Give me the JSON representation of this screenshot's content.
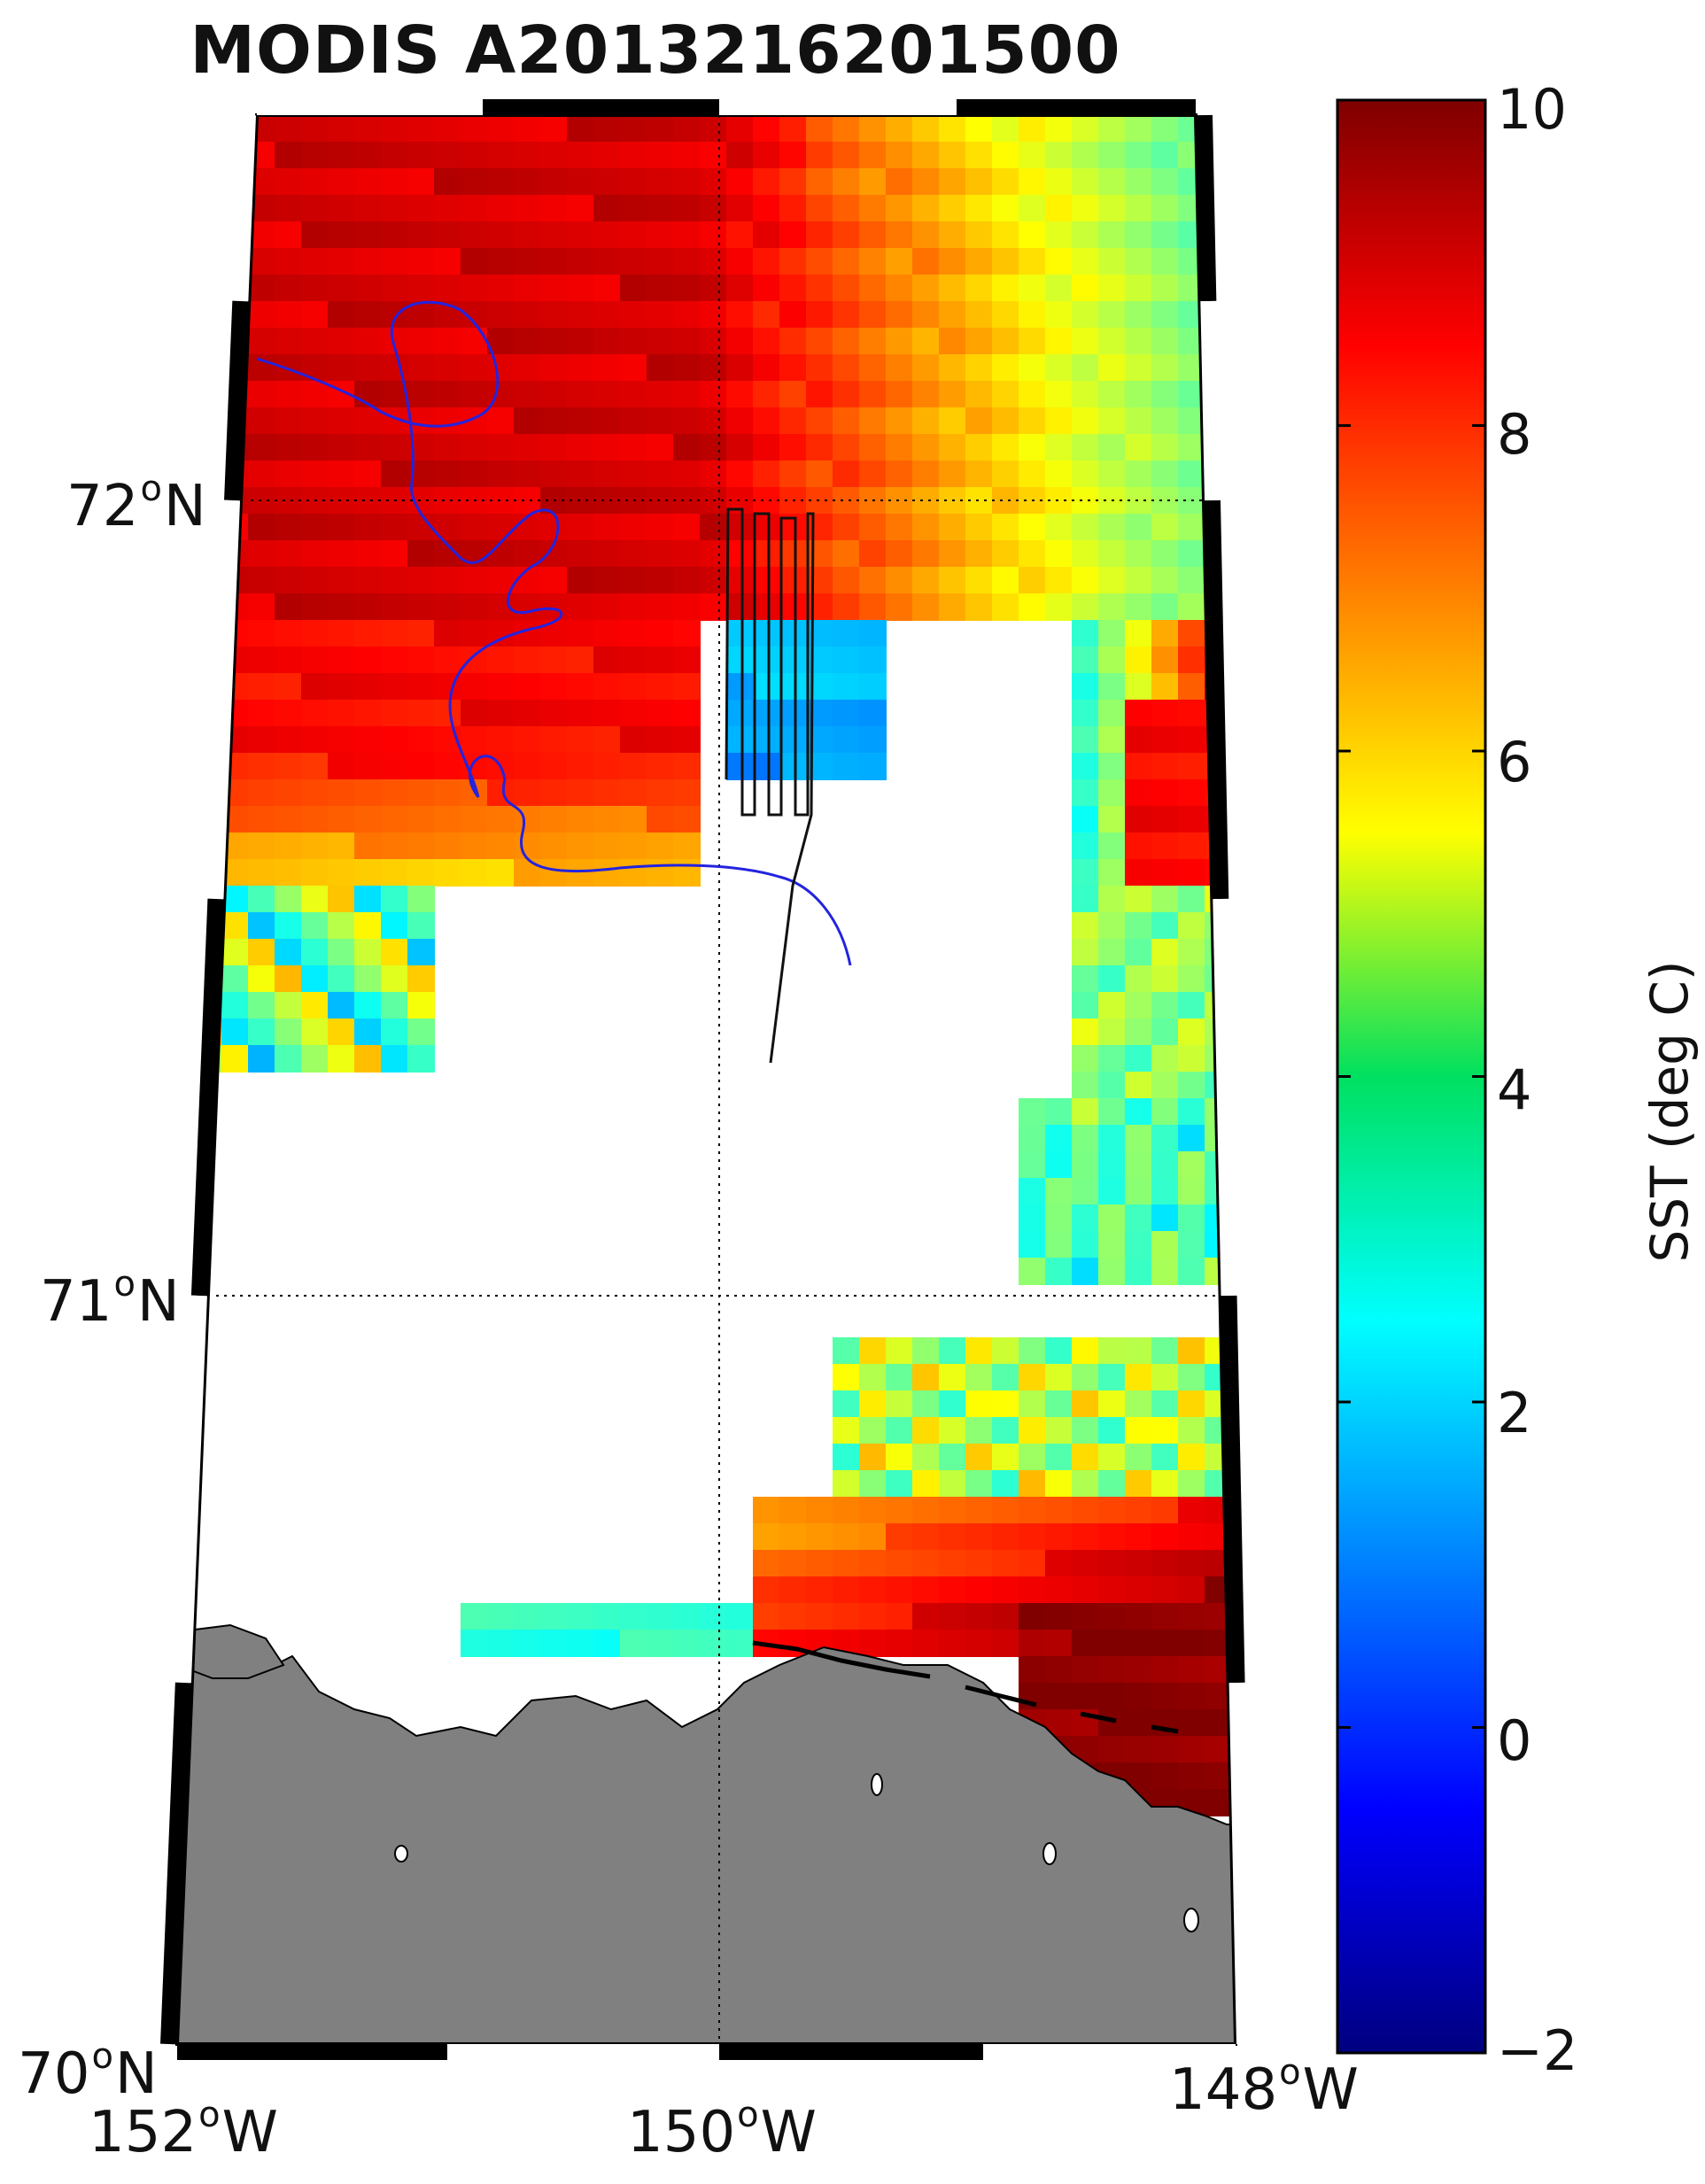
{
  "title": "MODIS A2013216201500",
  "map": {
    "lat_range": [
      70,
      72.5
    ],
    "lon_range": [
      -152,
      -148
    ],
    "latitude_labels": [
      {
        "deg": "72",
        "hemi": "N"
      },
      {
        "deg": "71",
        "hemi": "N"
      },
      {
        "deg": "70",
        "hemi": "N"
      }
    ],
    "longitude_labels": [
      {
        "deg": "152",
        "hemi": "W"
      },
      {
        "deg": "150",
        "hemi": "W"
      },
      {
        "deg": "148",
        "hemi": "W"
      }
    ],
    "land_color": "#808080",
    "no_data_color": "#ffffff",
    "tracks": [
      {
        "color": "#2323e0",
        "description": "drifter track"
      },
      {
        "color": "#111111",
        "description": "ship survey track"
      }
    ]
  },
  "colorbar": {
    "label": "SST (deg C)",
    "min": -2,
    "max": 10,
    "ticks": [
      "10",
      "8",
      "6",
      "4",
      "2",
      "0",
      "−2"
    ],
    "colormap": "jet"
  }
}
